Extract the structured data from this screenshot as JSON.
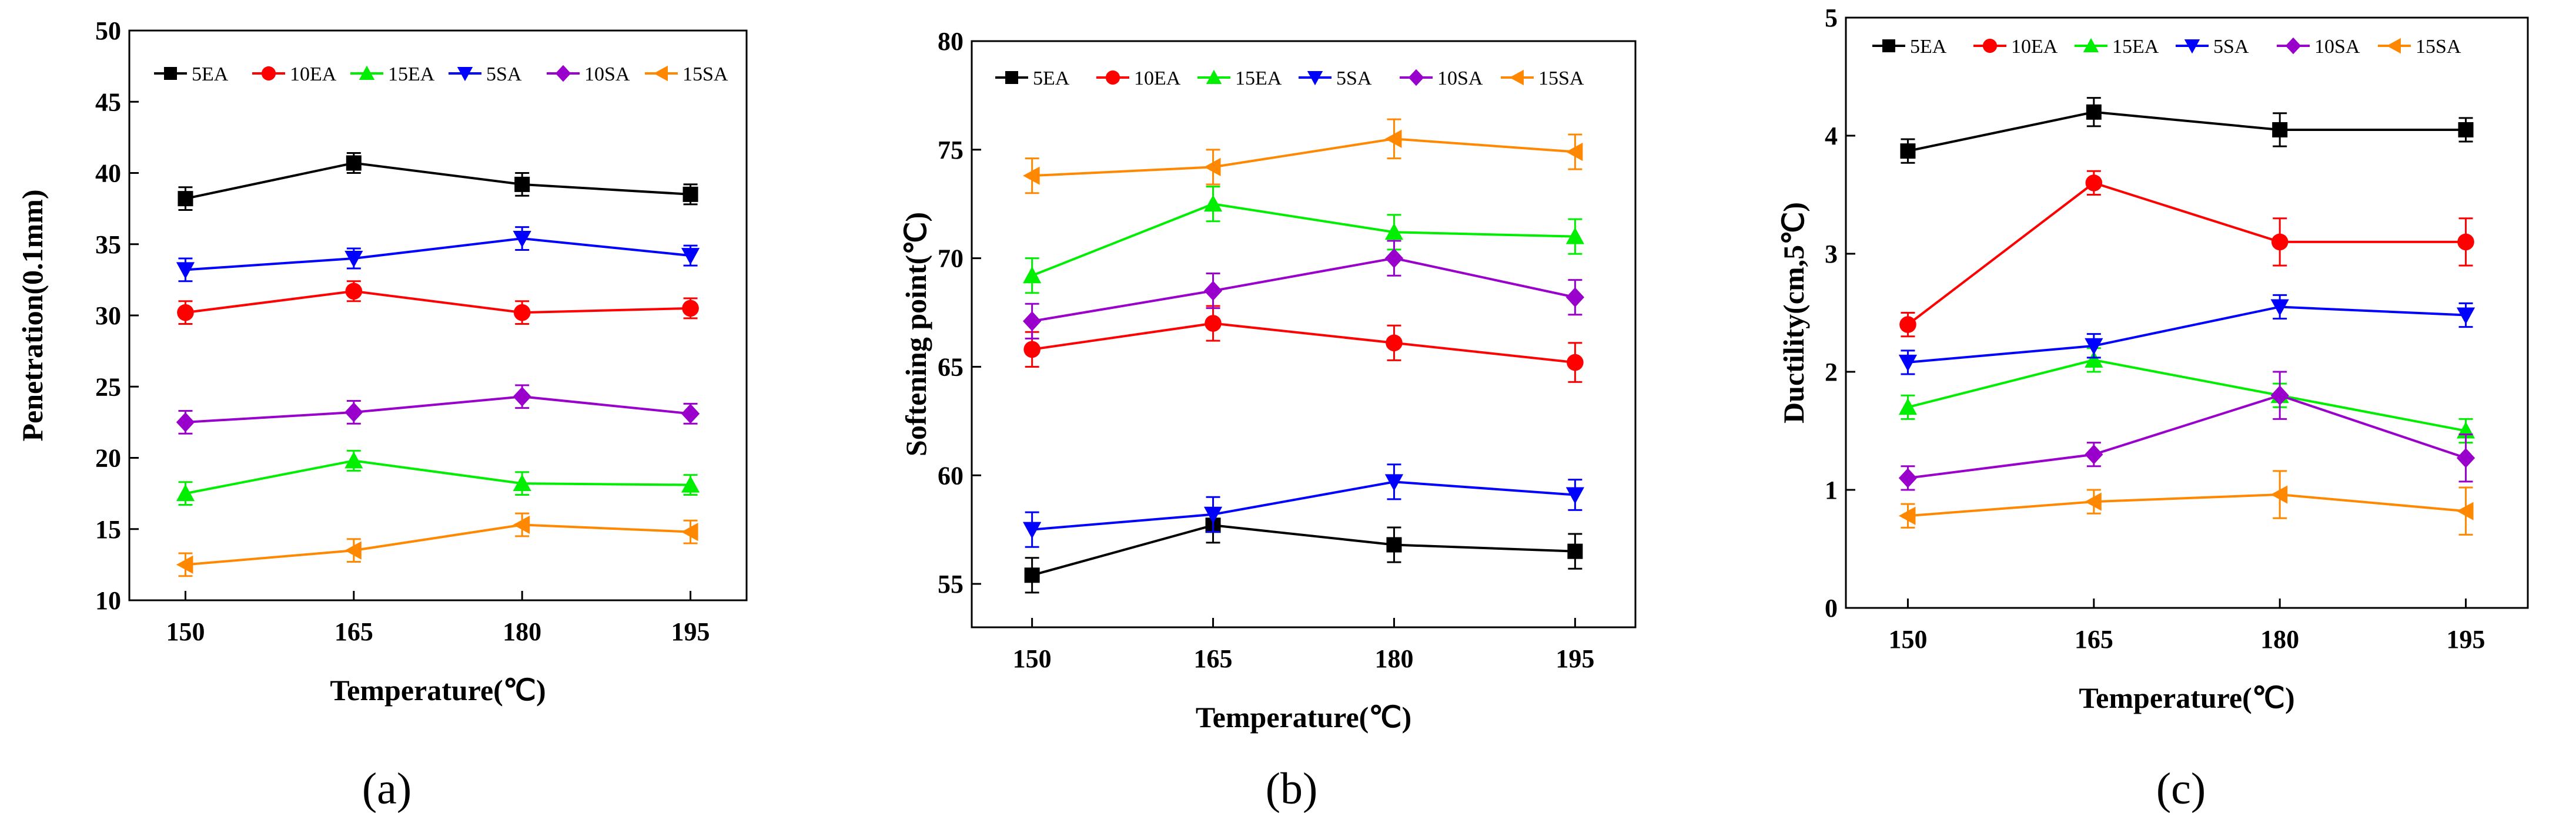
{
  "chart_data": [
    {
      "type": "line",
      "caption": "(a)",
      "xlabel": "Temperature(℃)",
      "ylabel": "Penetration(0.1mm)",
      "x": [
        150,
        165,
        180,
        195
      ],
      "xlim": [
        145,
        200
      ],
      "ylim": [
        10,
        50
      ],
      "yticks": [
        10,
        15,
        20,
        25,
        30,
        35,
        40,
        45,
        50
      ],
      "legend": "top",
      "series": [
        {
          "name": "5EA",
          "color": "#000000",
          "marker": "square",
          "values": [
            38.2,
            40.7,
            39.2,
            38.5
          ],
          "errors": [
            0.8,
            0.7,
            0.8,
            0.7
          ]
        },
        {
          "name": "10EA",
          "color": "#ff0000",
          "marker": "circle",
          "values": [
            30.2,
            31.7,
            30.2,
            30.5
          ],
          "errors": [
            0.8,
            0.7,
            0.8,
            0.7
          ]
        },
        {
          "name": "15EA",
          "color": "#00ee00",
          "marker": "triangle-up",
          "values": [
            17.5,
            19.8,
            18.2,
            18.1
          ],
          "errors": [
            0.8,
            0.7,
            0.8,
            0.7
          ]
        },
        {
          "name": "5SA",
          "color": "#0000ff",
          "marker": "triangle-down",
          "values": [
            33.2,
            34.0,
            35.4,
            34.2
          ],
          "errors": [
            0.8,
            0.7,
            0.8,
            0.7
          ]
        },
        {
          "name": "10SA",
          "color": "#9900cc",
          "marker": "diamond",
          "values": [
            22.5,
            23.2,
            24.3,
            23.1
          ],
          "errors": [
            0.8,
            0.8,
            0.8,
            0.7
          ]
        },
        {
          "name": "15SA",
          "color": "#ff8800",
          "marker": "triangle-left",
          "values": [
            12.5,
            13.5,
            15.3,
            14.8
          ],
          "errors": [
            0.8,
            0.8,
            0.8,
            0.8
          ]
        }
      ]
    },
    {
      "type": "line",
      "caption": "(b)",
      "xlabel": "Temperature(℃)",
      "ylabel": "Softening point(℃)",
      "x": [
        150,
        165,
        180,
        195
      ],
      "xlim": [
        145,
        200
      ],
      "ylim": [
        53,
        80
      ],
      "yticks": [
        55,
        60,
        65,
        70,
        75,
        80
      ],
      "legend": "top",
      "series": [
        {
          "name": "5EA",
          "color": "#000000",
          "marker": "square",
          "values": [
            55.4,
            57.7,
            56.8,
            56.5
          ],
          "errors": [
            0.8,
            0.8,
            0.8,
            0.8
          ]
        },
        {
          "name": "10EA",
          "color": "#ff0000",
          "marker": "circle",
          "values": [
            65.8,
            67.0,
            66.1,
            65.2
          ],
          "errors": [
            0.8,
            0.8,
            0.8,
            0.9
          ]
        },
        {
          "name": "15EA",
          "color": "#00ee00",
          "marker": "triangle-up",
          "values": [
            69.2,
            72.5,
            71.2,
            71.0
          ],
          "errors": [
            0.8,
            0.8,
            0.8,
            0.8
          ]
        },
        {
          "name": "5SA",
          "color": "#0000ff",
          "marker": "triangle-down",
          "values": [
            57.5,
            58.2,
            59.7,
            59.1
          ],
          "errors": [
            0.8,
            0.8,
            0.8,
            0.7
          ]
        },
        {
          "name": "10SA",
          "color": "#9900cc",
          "marker": "diamond",
          "values": [
            67.1,
            68.5,
            70.0,
            68.2
          ],
          "errors": [
            0.8,
            0.8,
            0.8,
            0.8
          ]
        },
        {
          "name": "15SA",
          "color": "#ff8800",
          "marker": "triangle-left",
          "values": [
            73.8,
            74.2,
            75.5,
            74.9
          ],
          "errors": [
            0.8,
            0.8,
            0.9,
            0.8
          ]
        }
      ]
    },
    {
      "type": "line",
      "caption": "(c)",
      "xlabel": "Temperature(℃)",
      "ylabel": "Ductility(cm,5℃)",
      "x": [
        150,
        165,
        180,
        195
      ],
      "xlim": [
        145,
        200
      ],
      "ylim": [
        0,
        5
      ],
      "yticks": [
        0,
        1,
        2,
        3,
        4,
        5
      ],
      "legend": "top",
      "series": [
        {
          "name": "5EA",
          "color": "#000000",
          "marker": "square",
          "values": [
            3.87,
            4.2,
            4.05,
            4.05
          ],
          "errors": [
            0.1,
            0.12,
            0.14,
            0.1
          ]
        },
        {
          "name": "10EA",
          "color": "#ff0000",
          "marker": "circle",
          "values": [
            2.4,
            3.6,
            3.1,
            3.1
          ],
          "errors": [
            0.1,
            0.1,
            0.2,
            0.2
          ]
        },
        {
          "name": "15EA",
          "color": "#00ee00",
          "marker": "triangle-up",
          "values": [
            1.7,
            2.1,
            1.8,
            1.5
          ],
          "errors": [
            0.1,
            0.1,
            0.1,
            0.1
          ]
        },
        {
          "name": "5SA",
          "color": "#0000ff",
          "marker": "triangle-down",
          "values": [
            2.08,
            2.22,
            2.55,
            2.48
          ],
          "errors": [
            0.1,
            0.1,
            0.1,
            0.1
          ]
        },
        {
          "name": "10SA",
          "color": "#9900cc",
          "marker": "diamond",
          "values": [
            1.1,
            1.3,
            1.8,
            1.27
          ],
          "errors": [
            0.1,
            0.1,
            0.2,
            0.2
          ]
        },
        {
          "name": "15SA",
          "color": "#ff8800",
          "marker": "triangle-left",
          "values": [
            0.78,
            0.9,
            0.96,
            0.82
          ],
          "errors": [
            0.1,
            0.1,
            0.2,
            0.2
          ]
        }
      ]
    }
  ]
}
